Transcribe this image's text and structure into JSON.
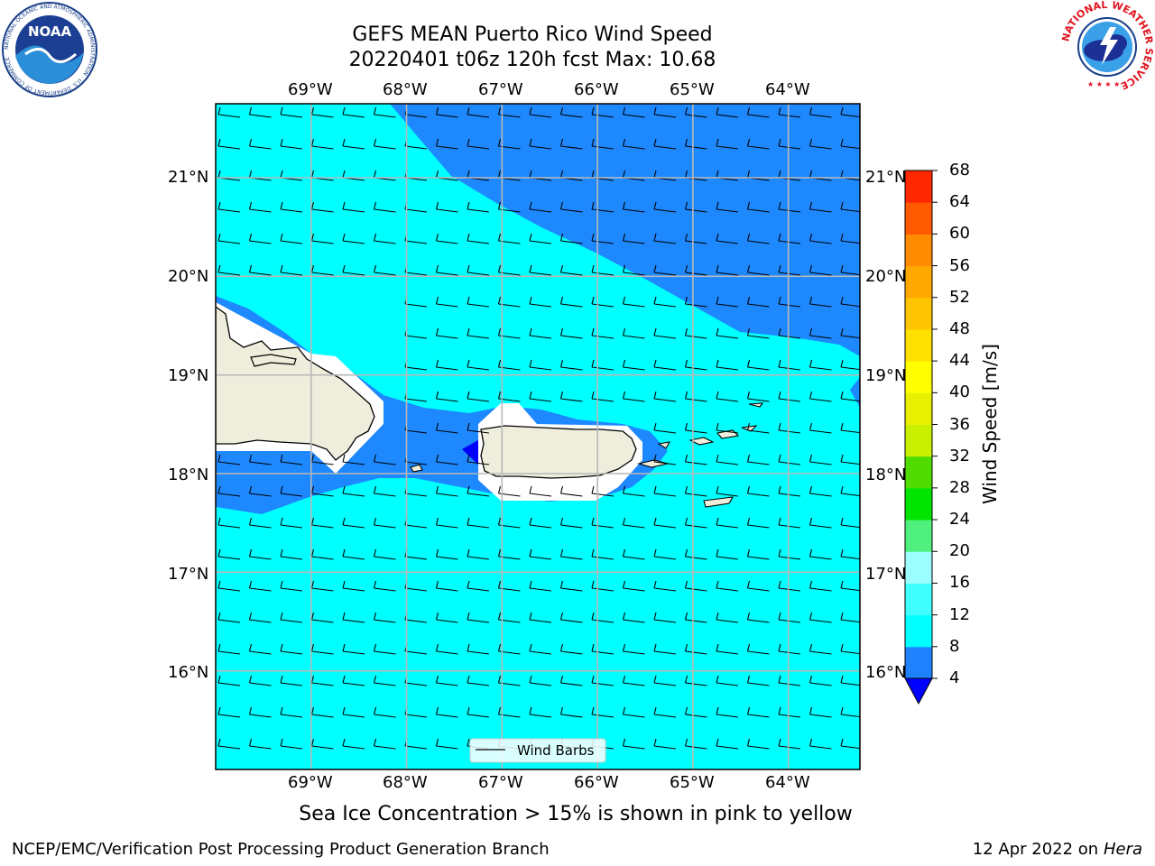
{
  "title": {
    "line1": "GEFS MEAN Puerto Rico Wind Speed",
    "line2": "20220401 t06z 120h fcst   Max: 10.68"
  },
  "map": {
    "lon_labels": [
      "69°W",
      "68°W",
      "67°W",
      "66°W",
      "65°W",
      "64°W"
    ],
    "lat_labels": [
      "21°N",
      "20°N",
      "19°N",
      "18°N",
      "17°N",
      "16°N"
    ],
    "lon_range": [
      -70,
      -63.25
    ],
    "lat_range": [
      15,
      21.75
    ],
    "legend_label": "Wind Barbs",
    "ocean_color": "#00ffff",
    "low_wind_color": "#1e88ff",
    "land_color": "#efeedd"
  },
  "colorbar": {
    "label": "Wind Speed [m/s]",
    "ticks": [
      "4",
      "8",
      "12",
      "16",
      "20",
      "24",
      "28",
      "32",
      "36",
      "40",
      "44",
      "48",
      "52",
      "56",
      "60",
      "64",
      "68"
    ],
    "colors": [
      "#1e82ff",
      "#00ffff",
      "#40ffff",
      "#9cffff",
      "#50f07e",
      "#00e400",
      "#50dc00",
      "#c8f000",
      "#e8f000",
      "#ffff00",
      "#ffe000",
      "#ffc400",
      "#ffa800",
      "#ff8c00",
      "#ff5a00",
      "#ff2800",
      "#ff0000"
    ],
    "under_color": "#0000ff"
  },
  "notes": {
    "sea_ice": "Sea Ice Concentration > 15% is shown in pink to yellow"
  },
  "footer": {
    "left": "NCEP/EMC/Verification Post Processing Product Generation Branch",
    "right_date": "12 Apr 2022 on ",
    "right_machine": "Hera"
  },
  "logos": {
    "left": "NOAA",
    "left_ring_text": "NATIONAL OCEANIC AND ATMOSPHERIC ADMINISTRATION · U.S. DEPARTMENT OF COMMERCE",
    "right_ring_text": "NATIONAL WEATHER SERVICE"
  }
}
